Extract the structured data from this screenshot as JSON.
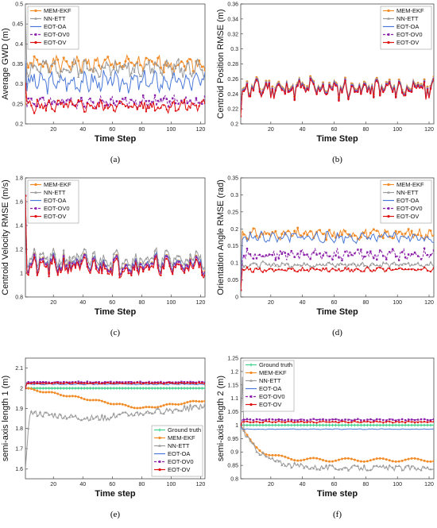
{
  "colors": {
    "MEM-EKF": "#f28c28",
    "NN-ETT": "#9a9a9a",
    "EOT-OA": "#4a78d8",
    "EOT-OV0": "#8b1fa9",
    "EOT-OV": "#e01010",
    "Ground truth": "#3fd08a"
  },
  "chart_data": [
    {
      "type": "line",
      "panel": "(a)",
      "xlabel": "Time Step",
      "ylabel": "Average GWD (m)",
      "xlim": [
        1,
        123
      ],
      "ylim": [
        0.2,
        0.5
      ],
      "xticks": [
        20,
        40,
        60,
        80,
        100,
        120
      ],
      "yticks": [
        0.2,
        0.25,
        0.3,
        0.35,
        0.4,
        0.45,
        0.5
      ],
      "legend": "top-left",
      "series": [
        {
          "name": "MEM-EKF",
          "base": 0.35,
          "amp": 0.014,
          "start": 0.25,
          "seed": 1
        },
        {
          "name": "NN-ETT",
          "base": 0.34,
          "amp": 0.016,
          "start": 0.5,
          "seed": 2
        },
        {
          "name": "EOT-OA",
          "base": 0.305,
          "amp": 0.02,
          "start": 0.36,
          "seed": 3
        },
        {
          "name": "EOT-OV0",
          "base": 0.255,
          "amp": 0.012,
          "start": 0.3,
          "seed": 4
        },
        {
          "name": "EOT-OV",
          "base": 0.245,
          "amp": 0.012,
          "start": 0.3,
          "seed": 5
        }
      ]
    },
    {
      "type": "line",
      "panel": "(b)",
      "xlabel": "Time Step",
      "ylabel": "Centroid Position RMSE (m)",
      "xlim": [
        1,
        123
      ],
      "ylim": [
        0.2,
        0.36
      ],
      "xticks": [
        20,
        40,
        60,
        80,
        100,
        120
      ],
      "yticks": [
        0.2,
        0.22,
        0.24,
        0.26,
        0.28,
        0.3,
        0.32,
        0.34,
        0.36
      ],
      "legend": "top-right",
      "series": [
        {
          "name": "MEM-EKF",
          "base": 0.25,
          "amp": 0.01,
          "start": 0.22,
          "seed": 11,
          "shared": true
        },
        {
          "name": "NN-ETT",
          "base": 0.249,
          "amp": 0.01,
          "start": 0.22,
          "seed": 11,
          "shared": true
        },
        {
          "name": "EOT-OA",
          "base": 0.248,
          "amp": 0.01,
          "start": 0.22,
          "seed": 11,
          "shared": true
        },
        {
          "name": "EOT-OV0",
          "base": 0.247,
          "amp": 0.01,
          "start": 0.22,
          "seed": 11,
          "shared": true
        },
        {
          "name": "EOT-OV",
          "base": 0.246,
          "amp": 0.01,
          "start": 0.21,
          "seed": 11,
          "shared": true
        }
      ]
    },
    {
      "type": "line",
      "panel": "(c)",
      "xlabel": "Time Step",
      "ylabel": "Centroid Velocity RMSE (m/s)",
      "xlim": [
        1,
        123
      ],
      "ylim": [
        0.8,
        1.8
      ],
      "xticks": [
        20,
        40,
        60,
        80,
        100,
        120
      ],
      "yticks": [
        0.8,
        1,
        1.2,
        1.4,
        1.6,
        1.8
      ],
      "legend": "top-left",
      "series": [
        {
          "name": "MEM-EKF",
          "base": 1.08,
          "amp": 0.06,
          "start": 1.65,
          "seed": 21,
          "shared": true
        },
        {
          "name": "NN-ETT",
          "base": 1.12,
          "amp": 0.06,
          "start": 1.65,
          "seed": 21,
          "shared": true
        },
        {
          "name": "EOT-OA",
          "base": 1.08,
          "amp": 0.06,
          "start": 1.65,
          "seed": 21,
          "shared": true
        },
        {
          "name": "EOT-OV0",
          "base": 1.07,
          "amp": 0.06,
          "start": 1.65,
          "seed": 21,
          "shared": true
        },
        {
          "name": "EOT-OV",
          "base": 1.05,
          "amp": 0.06,
          "start": 1.65,
          "seed": 21,
          "shared": true
        }
      ]
    },
    {
      "type": "line",
      "panel": "(d)",
      "xlabel": "Time Step",
      "ylabel": "Orientation Angle RMSE (rad)",
      "xlim": [
        1,
        123
      ],
      "ylim": [
        0,
        0.35
      ],
      "xticks": [
        20,
        40,
        60,
        80,
        100,
        120
      ],
      "yticks": [
        0,
        0.05,
        0.1,
        0.15,
        0.2,
        0.25,
        0.3,
        0.35
      ],
      "legend": "top-right",
      "series": [
        {
          "name": "MEM-EKF",
          "base": 0.185,
          "amp": 0.012,
          "start": 0.02,
          "seed": 31
        },
        {
          "name": "NN-ETT",
          "base": 0.095,
          "amp": 0.006,
          "start": 0.02,
          "seed": 32
        },
        {
          "name": "EOT-OA",
          "base": 0.175,
          "amp": 0.012,
          "start": 0.02,
          "seed": 33
        },
        {
          "name": "EOT-OV0",
          "base": 0.125,
          "amp": 0.012,
          "start": 0.02,
          "seed": 34
        },
        {
          "name": "EOT-OV",
          "base": 0.08,
          "amp": 0.005,
          "start": 0.02,
          "seed": 35
        }
      ]
    },
    {
      "type": "line",
      "panel": "(e)",
      "xlabel": "Time step",
      "ylabel": "semi-axis length 1 (m)",
      "xlim": [
        1,
        123
      ],
      "ylim": [
        1.55,
        2.15
      ],
      "xticks": [
        20,
        40,
        60,
        80,
        100,
        120
      ],
      "yticks": [
        1.6,
        1.7,
        1.8,
        1.9,
        2,
        2.1
      ],
      "legend": "bottom-right",
      "series": [
        {
          "name": "Ground truth",
          "base": 2.0,
          "amp": 0.0,
          "start": 2.0,
          "seed": 40
        },
        {
          "name": "MEM-EKF",
          "curve": "mem1"
        },
        {
          "name": "NN-ETT",
          "curve": "nn1"
        },
        {
          "name": "EOT-OA",
          "base": 2.02,
          "amp": 0.002,
          "start": 2.0,
          "seed": 43
        },
        {
          "name": "EOT-OV0",
          "base": 2.03,
          "amp": 0.002,
          "start": 2.0,
          "seed": 44
        },
        {
          "name": "EOT-OV",
          "base": 2.025,
          "amp": 0.002,
          "start": 2.0,
          "seed": 45
        }
      ]
    },
    {
      "type": "line",
      "panel": "(f)",
      "xlabel": "Time step",
      "ylabel": "semi-axis length 2 (m)",
      "xlim": [
        1,
        123
      ],
      "ylim": [
        0.8,
        1.25
      ],
      "xticks": [
        20,
        40,
        60,
        80,
        100,
        120
      ],
      "yticks": [
        0.8,
        0.85,
        0.9,
        0.95,
        1,
        1.05,
        1.1,
        1.15,
        1.2,
        1.25
      ],
      "legend": "top-left",
      "series": [
        {
          "name": "Ground truth",
          "base": 1.0,
          "amp": 0.0,
          "start": 1.0,
          "seed": 50
        },
        {
          "name": "MEM-EKF",
          "curve": "mem2"
        },
        {
          "name": "NN-ETT",
          "curve": "nn2"
        },
        {
          "name": "EOT-OA",
          "base": 0.985,
          "amp": 0.001,
          "start": 1.0,
          "seed": 53
        },
        {
          "name": "EOT-OV0",
          "base": 1.02,
          "amp": 0.002,
          "start": 1.0,
          "seed": 54
        },
        {
          "name": "EOT-OV",
          "base": 1.012,
          "amp": 0.002,
          "start": 1.0,
          "seed": 55
        }
      ]
    }
  ]
}
